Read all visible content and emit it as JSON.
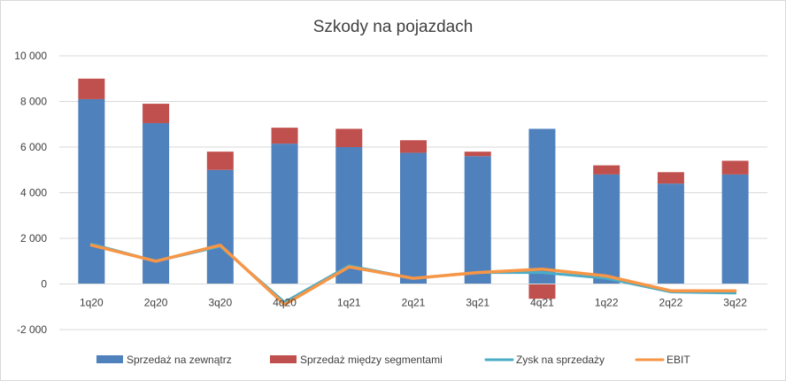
{
  "chart_data": {
    "type": "bar",
    "stacked": true,
    "title": "Szkody na pojazdach",
    "xlabel": "",
    "ylabel": "",
    "categories": [
      "1q20",
      "2q20",
      "3q20",
      "4q20",
      "1q21",
      "2q21",
      "3q21",
      "4q21",
      "1q22",
      "2q22",
      "3q22"
    ],
    "ylim": [
      -2000,
      10000
    ],
    "yticks": [
      -2000,
      0,
      2000,
      4000,
      6000,
      8000,
      10000
    ],
    "ytick_labels": [
      "-2 000",
      "0",
      "2 000",
      "4 000",
      "6 000",
      "8 000",
      "10 000"
    ],
    "grid": true,
    "legend_position": "bottom",
    "series": [
      {
        "name": "Sprzedaż na zewnątrz",
        "type": "bar",
        "color": "#4f81bd",
        "values": [
          8100,
          7050,
          5000,
          6150,
          6000,
          5750,
          5600,
          6800,
          4800,
          4400,
          4800
        ]
      },
      {
        "name": "Sprzedaż między segmentami",
        "type": "bar",
        "color": "#c0504d",
        "values": [
          900,
          850,
          800,
          700,
          800,
          550,
          200,
          -650,
          400,
          500,
          600
        ]
      },
      {
        "name": "Zysk na sprzedaży",
        "type": "line",
        "color": "#4bacc6",
        "values": [
          1750,
          1000,
          1650,
          -800,
          800,
          250,
          500,
          500,
          250,
          -350,
          -400
        ]
      },
      {
        "name": "EBIT",
        "type": "line",
        "color": "#f79646",
        "values": [
          1700,
          1000,
          1700,
          -900,
          750,
          250,
          500,
          650,
          350,
          -300,
          -300
        ]
      }
    ]
  }
}
